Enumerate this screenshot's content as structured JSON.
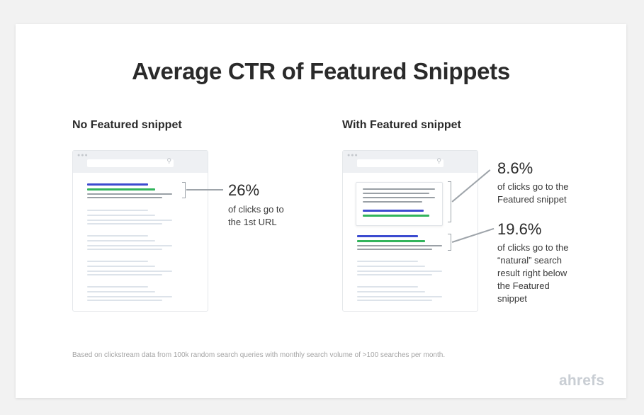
{
  "title": "Average CTR of Featured Snippets",
  "left_panel": {
    "heading": "No Featured snippet",
    "stat": {
      "value": "26%",
      "caption_lines": [
        "of clicks go to",
        "the 1st URL"
      ]
    }
  },
  "right_panel": {
    "heading": "With Featured snippet",
    "snippet_stat": {
      "value": "8.6%",
      "caption_lines": [
        "of clicks go to the",
        "Featured snippet"
      ]
    },
    "natural_stat": {
      "value": "19.6%",
      "caption_lines": [
        "of clicks go to the",
        "“natural” search",
        "result right below",
        "the Featured",
        "snippet"
      ]
    }
  },
  "footnote": "Based on clickstream data from 100k random search queries with monthly search volume of >100 searches per month.",
  "brand": "ahrefs",
  "colors": {
    "blue_link": "#3c4bd0",
    "green_url": "#32b45c",
    "gray_text": "#9aa0a6",
    "light_text": "#dde3ea",
    "brand_logo": "#c9ced4"
  },
  "icons": [
    "window-dots-icon",
    "search-icon"
  ]
}
